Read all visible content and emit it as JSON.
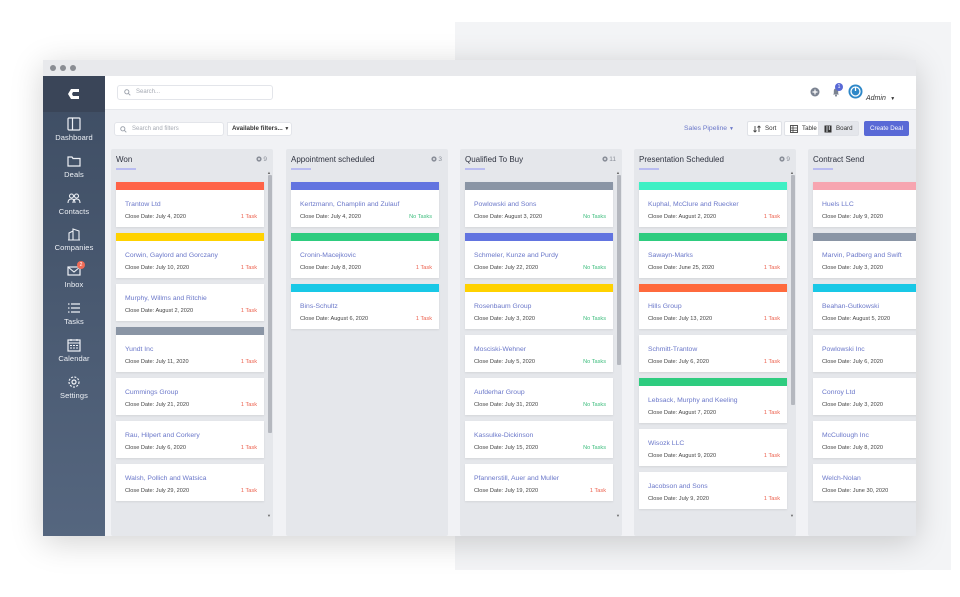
{
  "topbar": {
    "search_placeholder": "Search...",
    "admin_name": "Admin",
    "notification_count": "1"
  },
  "sidebar": {
    "items": [
      {
        "label": "Dashboard",
        "icon": "dashboard-icon"
      },
      {
        "label": "Deals",
        "icon": "folder-icon"
      },
      {
        "label": "Contacts",
        "icon": "users-icon"
      },
      {
        "label": "Companies",
        "icon": "building-icon"
      },
      {
        "label": "Inbox",
        "icon": "mail-icon",
        "badge": "2"
      },
      {
        "label": "Tasks",
        "icon": "list-icon"
      },
      {
        "label": "Calendar",
        "icon": "calendar-icon"
      },
      {
        "label": "Settings",
        "icon": "gear-icon"
      }
    ]
  },
  "filterbar": {
    "filter_placeholder": "Search and filters",
    "available_filters": "Available filters...",
    "pipeline": "Sales Pipeline",
    "sort": "Sort",
    "table": "Table",
    "board": "Board",
    "create": "Create Deal"
  },
  "colors": {
    "accent": "#5969d6",
    "red": "#ff6347",
    "yellow": "#ffd200",
    "gray": "#8a95a5",
    "blue": "#6274e0",
    "green": "#2ecc7f",
    "cyan": "#19c8e6",
    "teal": "#3ef0c4",
    "orange": "#ff6a3d",
    "pink": "#f7a5b0"
  },
  "columns": [
    {
      "title": "Won",
      "count": "9",
      "cards": [
        {
          "bar": "#ff6347",
          "name": "Trantow Ltd",
          "date": "Close Date: July 4, 2020",
          "task": "1 Task",
          "done": false
        },
        {
          "bar": "#ffd200",
          "name": "Corwin, Gaylord and Gorczany",
          "date": "Close Date: July 10, 2020",
          "task": "1 Task",
          "done": false
        },
        {
          "bar": "",
          "name": "Murphy, Willms and Ritchie",
          "date": "Close Date: August 2, 2020",
          "task": "1 Task",
          "done": false
        },
        {
          "bar": "#8a95a5",
          "name": "Yundt Inc",
          "date": "Close Date: July 11, 2020",
          "task": "1 Task",
          "done": false
        },
        {
          "bar": "",
          "name": "Cummings Group",
          "date": "Close Date: July 21, 2020",
          "task": "1 Task",
          "done": false
        },
        {
          "bar": "",
          "name": "Rau, Hilpert and Corkery",
          "date": "Close Date: July 6, 2020",
          "task": "1 Task",
          "done": false
        },
        {
          "bar": "",
          "name": "Walsh, Pollich and Watsica",
          "date": "Close Date: July 29, 2020",
          "task": "1 Task",
          "done": false
        }
      ]
    },
    {
      "title": "Appointment scheduled",
      "count": "3",
      "cards": [
        {
          "bar": "#6274e0",
          "name": "Kertzmann, Champlin and Zulauf",
          "date": "Close Date: July 4, 2020",
          "task": "No Tasks",
          "done": true
        },
        {
          "bar": "#2ecc7f",
          "name": "Cronin-Macejkovic",
          "date": "Close Date: July 8, 2020",
          "task": "1 Task",
          "done": false
        },
        {
          "bar": "#19c8e6",
          "name": "Bins-Schultz",
          "date": "Close Date: August 6, 2020",
          "task": "1 Task",
          "done": false
        }
      ]
    },
    {
      "title": "Qualified To Buy",
      "count": "11",
      "cards": [
        {
          "bar": "#8a95a5",
          "name": "Powlowski and Sons",
          "date": "Close Date: August 3, 2020",
          "task": "No Tasks",
          "done": true
        },
        {
          "bar": "#6274e0",
          "name": "Schmeler, Kunze and Purdy",
          "date": "Close Date: July 22, 2020",
          "task": "No Tasks",
          "done": true
        },
        {
          "bar": "#ffd200",
          "name": "Rosenbaum Group",
          "date": "Close Date: July 3, 2020",
          "task": "No Tasks",
          "done": true
        },
        {
          "bar": "",
          "name": "Mosciski-Wehner",
          "date": "Close Date: July 5, 2020",
          "task": "No Tasks",
          "done": true
        },
        {
          "bar": "",
          "name": "Aufderhar Group",
          "date": "Close Date: July 31, 2020",
          "task": "No Tasks",
          "done": true
        },
        {
          "bar": "",
          "name": "Kassulke-Dickinson",
          "date": "Close Date: July 15, 2020",
          "task": "No Tasks",
          "done": true
        },
        {
          "bar": "",
          "name": "Pfannerstill, Auer and Muller",
          "date": "Close Date: July 19, 2020",
          "task": "1 Task",
          "done": false
        }
      ]
    },
    {
      "title": "Presentation Scheduled",
      "count": "9",
      "cards": [
        {
          "bar": "#3ef0c4",
          "name": "Kuphal, McClure and Ruecker",
          "date": "Close Date: August 2, 2020",
          "task": "1 Task",
          "done": false
        },
        {
          "bar": "#2ecc7f",
          "name": "Sawayn-Marks",
          "date": "Close Date: June 25, 2020",
          "task": "1 Task",
          "done": false
        },
        {
          "bar": "#ff6a3d",
          "name": "Hills Group",
          "date": "Close Date: July 13, 2020",
          "task": "1 Task",
          "done": false
        },
        {
          "bar": "",
          "name": "Schmitt-Trantow",
          "date": "Close Date: July 6, 2020",
          "task": "1 Task",
          "done": false
        },
        {
          "bar": "#2ecc7f",
          "name": "Lebsack, Murphy and Keeling",
          "date": "Close Date: August 7, 2020",
          "task": "1 Task",
          "done": false
        },
        {
          "bar": "",
          "name": "Wisozk LLC",
          "date": "Close Date: August 9, 2020",
          "task": "1 Task",
          "done": false
        },
        {
          "bar": "",
          "name": "Jacobson and Sons",
          "date": "Close Date: July 9, 2020",
          "task": "1 Task",
          "done": false
        }
      ]
    },
    {
      "title": "Contract Send",
      "count": "",
      "cards": [
        {
          "bar": "#f7a5b0",
          "name": "Huels LLC",
          "date": "Close Date: July 9, 2020",
          "task": "",
          "done": false
        },
        {
          "bar": "#8a95a5",
          "name": "Marvin, Padberg and Swift",
          "date": "Close Date: July 3, 2020",
          "task": "",
          "done": false
        },
        {
          "bar": "#19c8e6",
          "name": "Beahan-Gutkowski",
          "date": "Close Date: August 5, 2020",
          "task": "",
          "done": false
        },
        {
          "bar": "",
          "name": "Powlowski Inc",
          "date": "Close Date: July 6, 2020",
          "task": "",
          "done": false
        },
        {
          "bar": "",
          "name": "Conroy Ltd",
          "date": "Close Date: July 3, 2020",
          "task": "",
          "done": false
        },
        {
          "bar": "",
          "name": "McCullough Inc",
          "date": "Close Date: July 8, 2020",
          "task": "",
          "done": false
        },
        {
          "bar": "",
          "name": "Welch-Nolan",
          "date": "Close Date: June 30, 2020",
          "task": "",
          "done": false
        }
      ]
    }
  ]
}
